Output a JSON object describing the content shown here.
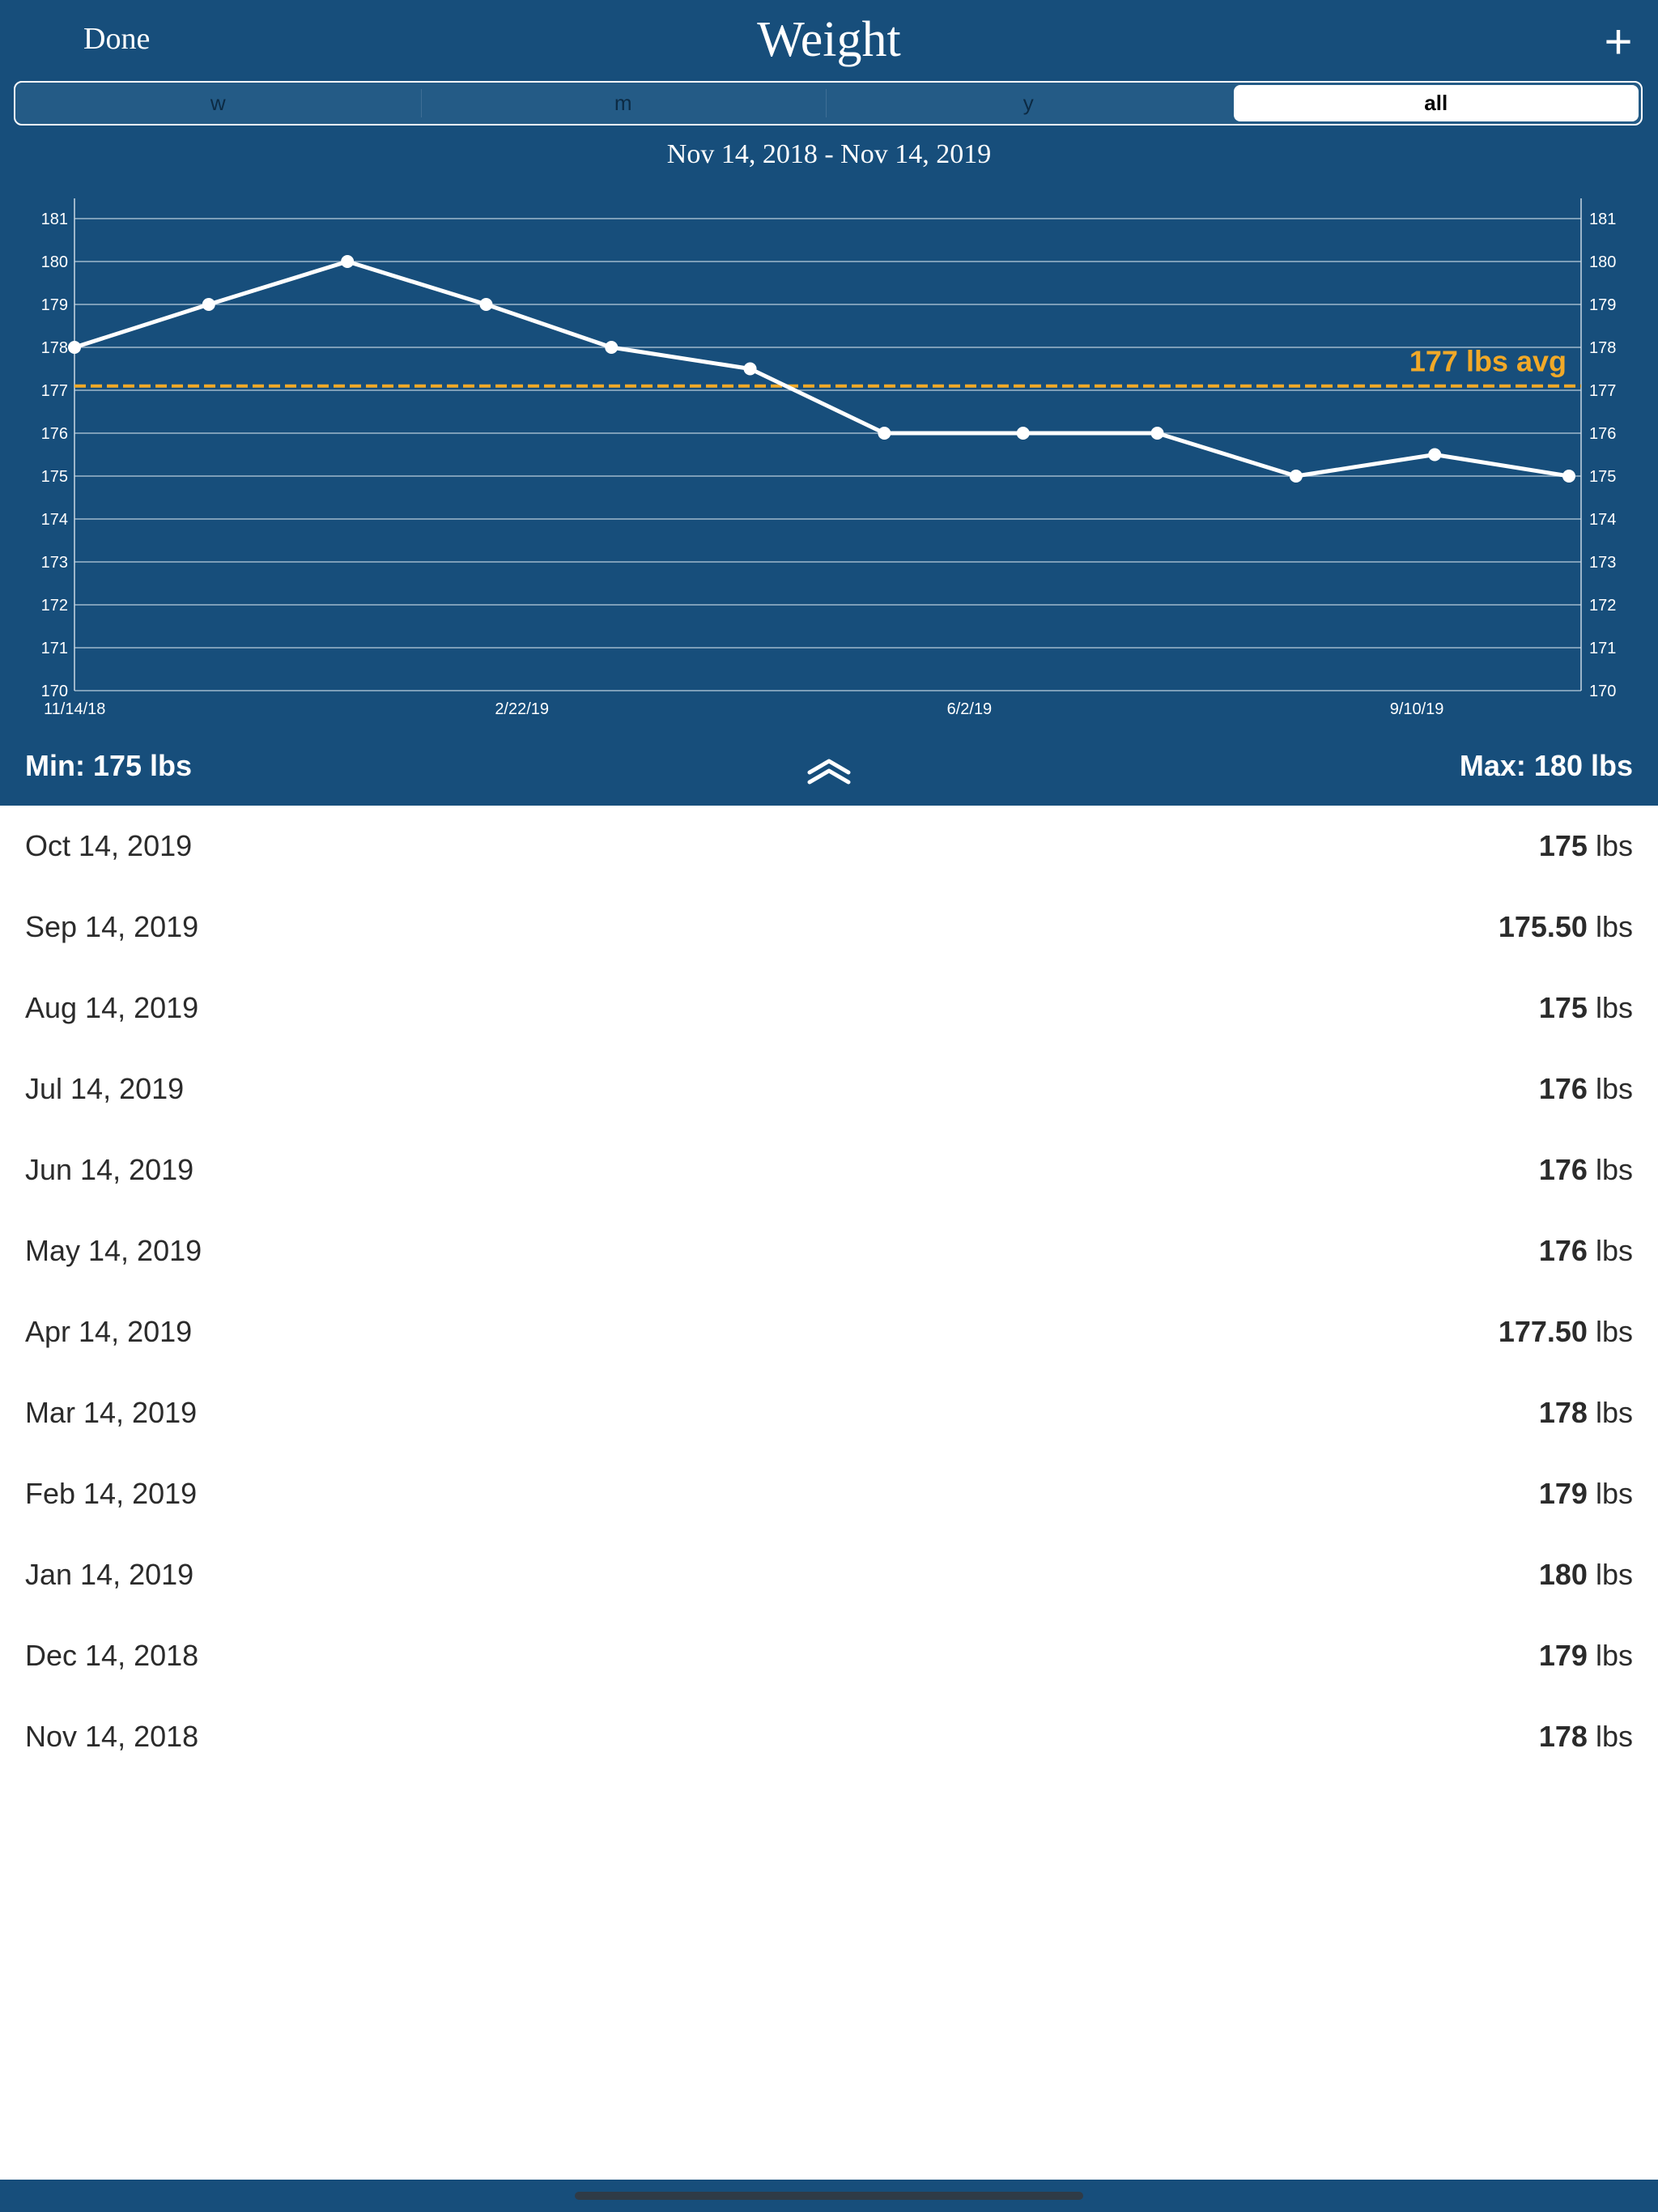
{
  "nav": {
    "done_label": "Done",
    "title": "Weight",
    "add_label": "+"
  },
  "segments": [
    {
      "label": "w",
      "active": false
    },
    {
      "label": "m",
      "active": false
    },
    {
      "label": "y",
      "active": false
    },
    {
      "label": "all",
      "active": true
    }
  ],
  "date_range": "Nov 14, 2018 - Nov 14, 2019",
  "colors": {
    "header_bg": "#174e7b",
    "line": "#ffffff",
    "avg": "#f1a928"
  },
  "chart_data": {
    "type": "line",
    "x": [
      "2018-11-14",
      "2018-12-14",
      "2019-01-14",
      "2019-02-14",
      "2019-03-14",
      "2019-04-14",
      "2019-05-14",
      "2019-06-14",
      "2019-07-14",
      "2019-08-14",
      "2019-09-14",
      "2019-10-14"
    ],
    "values": [
      178,
      179,
      180,
      179,
      178,
      177.5,
      176,
      176,
      176,
      175,
      175.5,
      175
    ],
    "ylim": [
      170,
      181
    ],
    "yticks": [
      170,
      171,
      172,
      173,
      174,
      175,
      176,
      177,
      178,
      179,
      180,
      181
    ],
    "xticks": [
      {
        "date": "2018-11-14",
        "label": "11/14/18"
      },
      {
        "date": "2019-02-22",
        "label": "2/22/19"
      },
      {
        "date": "2019-06-02",
        "label": "6/2/19"
      },
      {
        "date": "2019-09-10",
        "label": "9/10/19"
      }
    ],
    "average": 177.1,
    "average_label": "177 lbs avg",
    "grid": true
  },
  "summary": {
    "min_label": "Min: 175 lbs",
    "max_label": "Max: 180 lbs"
  },
  "entries": [
    {
      "date": "Oct 14, 2019",
      "value": "175",
      "unit": "lbs"
    },
    {
      "date": "Sep 14, 2019",
      "value": "175.50",
      "unit": "lbs"
    },
    {
      "date": "Aug 14, 2019",
      "value": "175",
      "unit": "lbs"
    },
    {
      "date": "Jul 14, 2019",
      "value": "176",
      "unit": "lbs"
    },
    {
      "date": "Jun 14, 2019",
      "value": "176",
      "unit": "lbs"
    },
    {
      "date": "May 14, 2019",
      "value": "176",
      "unit": "lbs"
    },
    {
      "date": "Apr 14, 2019",
      "value": "177.50",
      "unit": "lbs"
    },
    {
      "date": "Mar 14, 2019",
      "value": "178",
      "unit": "lbs"
    },
    {
      "date": "Feb 14, 2019",
      "value": "179",
      "unit": "lbs"
    },
    {
      "date": "Jan 14, 2019",
      "value": "180",
      "unit": "lbs"
    },
    {
      "date": "Dec 14, 2018",
      "value": "179",
      "unit": "lbs"
    },
    {
      "date": "Nov 14, 2018",
      "value": "178",
      "unit": "lbs"
    }
  ]
}
